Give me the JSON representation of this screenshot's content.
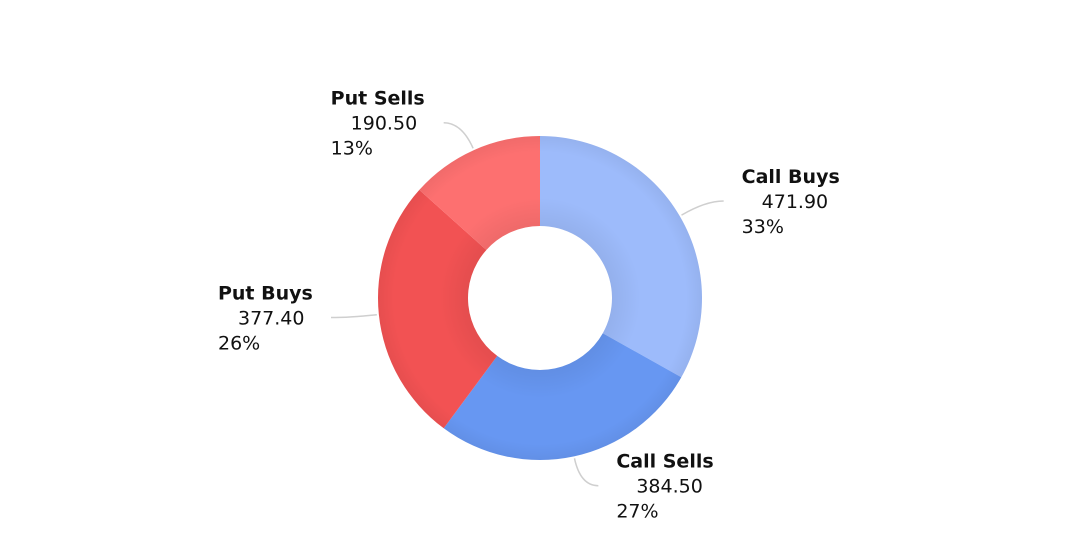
{
  "chart_data": {
    "type": "pie",
    "donut": true,
    "categories": [
      "Call Buys",
      "Call Sells",
      "Put Buys",
      "Put Sells"
    ],
    "values": [
      471.9,
      384.5,
      377.4,
      190.5
    ],
    "value_labels": [
      "471.90",
      "384.50",
      "377.40",
      "190.50"
    ],
    "percent_labels": [
      "33%",
      "27%",
      "26%",
      "13%"
    ],
    "colors": [
      "#9dbbfb",
      "#6797f2",
      "#f25253",
      "#fd7070"
    ],
    "start_angle_deg": 0,
    "direction": "clockwise",
    "legend": "none"
  }
}
